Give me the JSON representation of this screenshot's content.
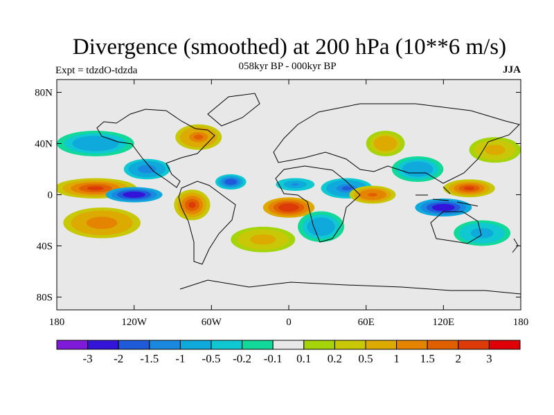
{
  "title": "Divergence (smoothed) at 200 hPa (10**6 m/s)",
  "subtitle_left": "Expt = tdzdO-tdzda",
  "subtitle_center": "058kyr BP - 000kyr BP",
  "subtitle_right": "JJA",
  "chart_data": {
    "type": "heatmap",
    "variable": "Divergence (smoothed) at 200 hPa",
    "units": "10**6 m/s",
    "period": "058kyr BP - 000kyr BP",
    "season": "JJA",
    "experiment": "tdzdO-tdzda",
    "x_range": [
      -180,
      180
    ],
    "y_range": [
      -90,
      90
    ],
    "x_ticks": [
      {
        "value": -180,
        "label": "180"
      },
      {
        "value": -120,
        "label": "120W"
      },
      {
        "value": -60,
        "label": "60W"
      },
      {
        "value": 0,
        "label": "0"
      },
      {
        "value": 60,
        "label": "60E"
      },
      {
        "value": 120,
        "label": "120E"
      },
      {
        "value": 180,
        "label": "180"
      }
    ],
    "y_ticks": [
      {
        "value": 80,
        "label": "80N"
      },
      {
        "value": 40,
        "label": "40N"
      },
      {
        "value": 0,
        "label": "0"
      },
      {
        "value": -40,
        "label": "40S"
      },
      {
        "value": -80,
        "label": "80S"
      }
    ],
    "levels": [
      -3,
      -2,
      -1.5,
      -1,
      -0.5,
      -0.2,
      -0.1,
      0.1,
      0.2,
      0.5,
      1,
      1.5,
      2,
      3
    ],
    "level_labels": [
      "-3",
      "-2",
      "-1.5",
      "-1",
      "-0.5",
      "-0.2",
      "-0.1",
      "0.1",
      "0.2",
      "0.5",
      "1",
      "1.5",
      "2",
      "3"
    ],
    "colors": [
      "#7f1ad9",
      "#3414d9",
      "#1f5ad8",
      "#1b88e0",
      "#10a9dc",
      "#0fc8d2",
      "#12d89a",
      "#e8e8e8",
      "#a6d40a",
      "#c8c808",
      "#dcaa00",
      "#e48400",
      "#e06000",
      "#dc3a08",
      "#e00008"
    ],
    "features": [
      {
        "lon": -150,
        "lat": 5,
        "value": 2.4,
        "rx": 32,
        "ry": 8
      },
      {
        "lon": -150,
        "lat": 40,
        "value": -1.0,
        "rx": 30,
        "ry": 10
      },
      {
        "lon": -145,
        "lat": -22,
        "value": 1.4,
        "rx": 30,
        "ry": 12
      },
      {
        "lon": -120,
        "lat": 0,
        "value": -3.0,
        "rx": 22,
        "ry": 6
      },
      {
        "lon": -110,
        "lat": 20,
        "value": -1.5,
        "rx": 18,
        "ry": 8
      },
      {
        "lon": -75,
        "lat": -8,
        "value": 2.2,
        "rx": 14,
        "ry": 12
      },
      {
        "lon": -70,
        "lat": 45,
        "value": 1.6,
        "rx": 18,
        "ry": 10
      },
      {
        "lon": -45,
        "lat": 10,
        "value": -2.0,
        "rx": 12,
        "ry": 6
      },
      {
        "lon": -20,
        "lat": -35,
        "value": 0.8,
        "rx": 25,
        "ry": 10
      },
      {
        "lon": 0,
        "lat": -10,
        "value": 2.6,
        "rx": 20,
        "ry": 8
      },
      {
        "lon": 5,
        "lat": 8,
        "value": -1.2,
        "rx": 15,
        "ry": 5
      },
      {
        "lon": 25,
        "lat": -25,
        "value": -1.0,
        "rx": 18,
        "ry": 12
      },
      {
        "lon": 45,
        "lat": 5,
        "value": -1.6,
        "rx": 20,
        "ry": 8
      },
      {
        "lon": 65,
        "lat": 0,
        "value": 1.8,
        "rx": 18,
        "ry": 7
      },
      {
        "lon": 75,
        "lat": 40,
        "value": 0.9,
        "rx": 15,
        "ry": 10
      },
      {
        "lon": 100,
        "lat": 20,
        "value": -1.0,
        "rx": 20,
        "ry": 10
      },
      {
        "lon": 120,
        "lat": -10,
        "value": -2.8,
        "rx": 22,
        "ry": 7
      },
      {
        "lon": 140,
        "lat": 5,
        "value": 2.2,
        "rx": 20,
        "ry": 7
      },
      {
        "lon": 160,
        "lat": 35,
        "value": 0.8,
        "rx": 20,
        "ry": 10
      },
      {
        "lon": 150,
        "lat": -30,
        "value": -0.8,
        "rx": 22,
        "ry": 10
      }
    ]
  }
}
